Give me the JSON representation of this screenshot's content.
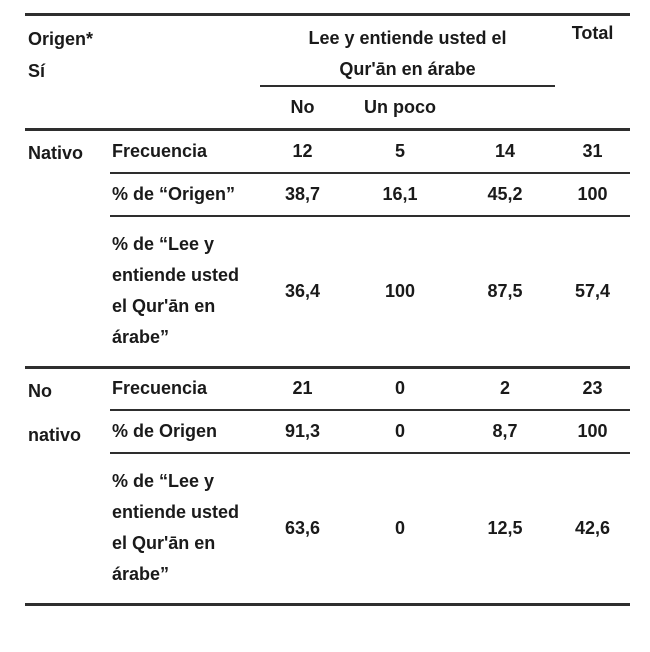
{
  "page": {
    "background": "#ffffff",
    "text_color": "#1a1a1a",
    "rule_color": "#2e2e2e"
  },
  "table": {
    "header": {
      "origin_lines": [
        "Origen*",
        "Sí"
      ],
      "span_lines": [
        "Lee y entiende usted el",
        "Qur'ān en árabe"
      ],
      "sub_columns": [
        "No",
        "Un poco",
        ""
      ],
      "total": "Total"
    },
    "groups": [
      {
        "origin_lines": [
          "Nativo"
        ],
        "rows": [
          {
            "label_lines": [
              "Frecuencia"
            ],
            "values": [
              "12",
              "5",
              "14",
              "31"
            ]
          },
          {
            "label_lines": [
              "% de “Origen”"
            ],
            "values": [
              "38,7",
              "16,1",
              "45,2",
              "100"
            ]
          },
          {
            "label_lines": [
              "% de “Lee y",
              "entiende usted",
              "el Qur'ān en",
              "árabe”"
            ],
            "values": [
              "36,4",
              "100",
              "87,5",
              "57,4"
            ]
          }
        ]
      },
      {
        "origin_lines": [
          "No",
          "nativo"
        ],
        "rows": [
          {
            "label_lines": [
              "Frecuencia"
            ],
            "values": [
              "21",
              "0",
              "2",
              "23"
            ]
          },
          {
            "label_lines": [
              "% de Origen"
            ],
            "values": [
              "91,3",
              "0",
              "8,7",
              "100"
            ]
          },
          {
            "label_lines": [
              "% de “Lee y",
              "entiende usted",
              "el Qur'ān en",
              "árabe”"
            ],
            "values": [
              "63,6",
              "0",
              "12,5",
              "42,6"
            ]
          }
        ]
      }
    ]
  }
}
